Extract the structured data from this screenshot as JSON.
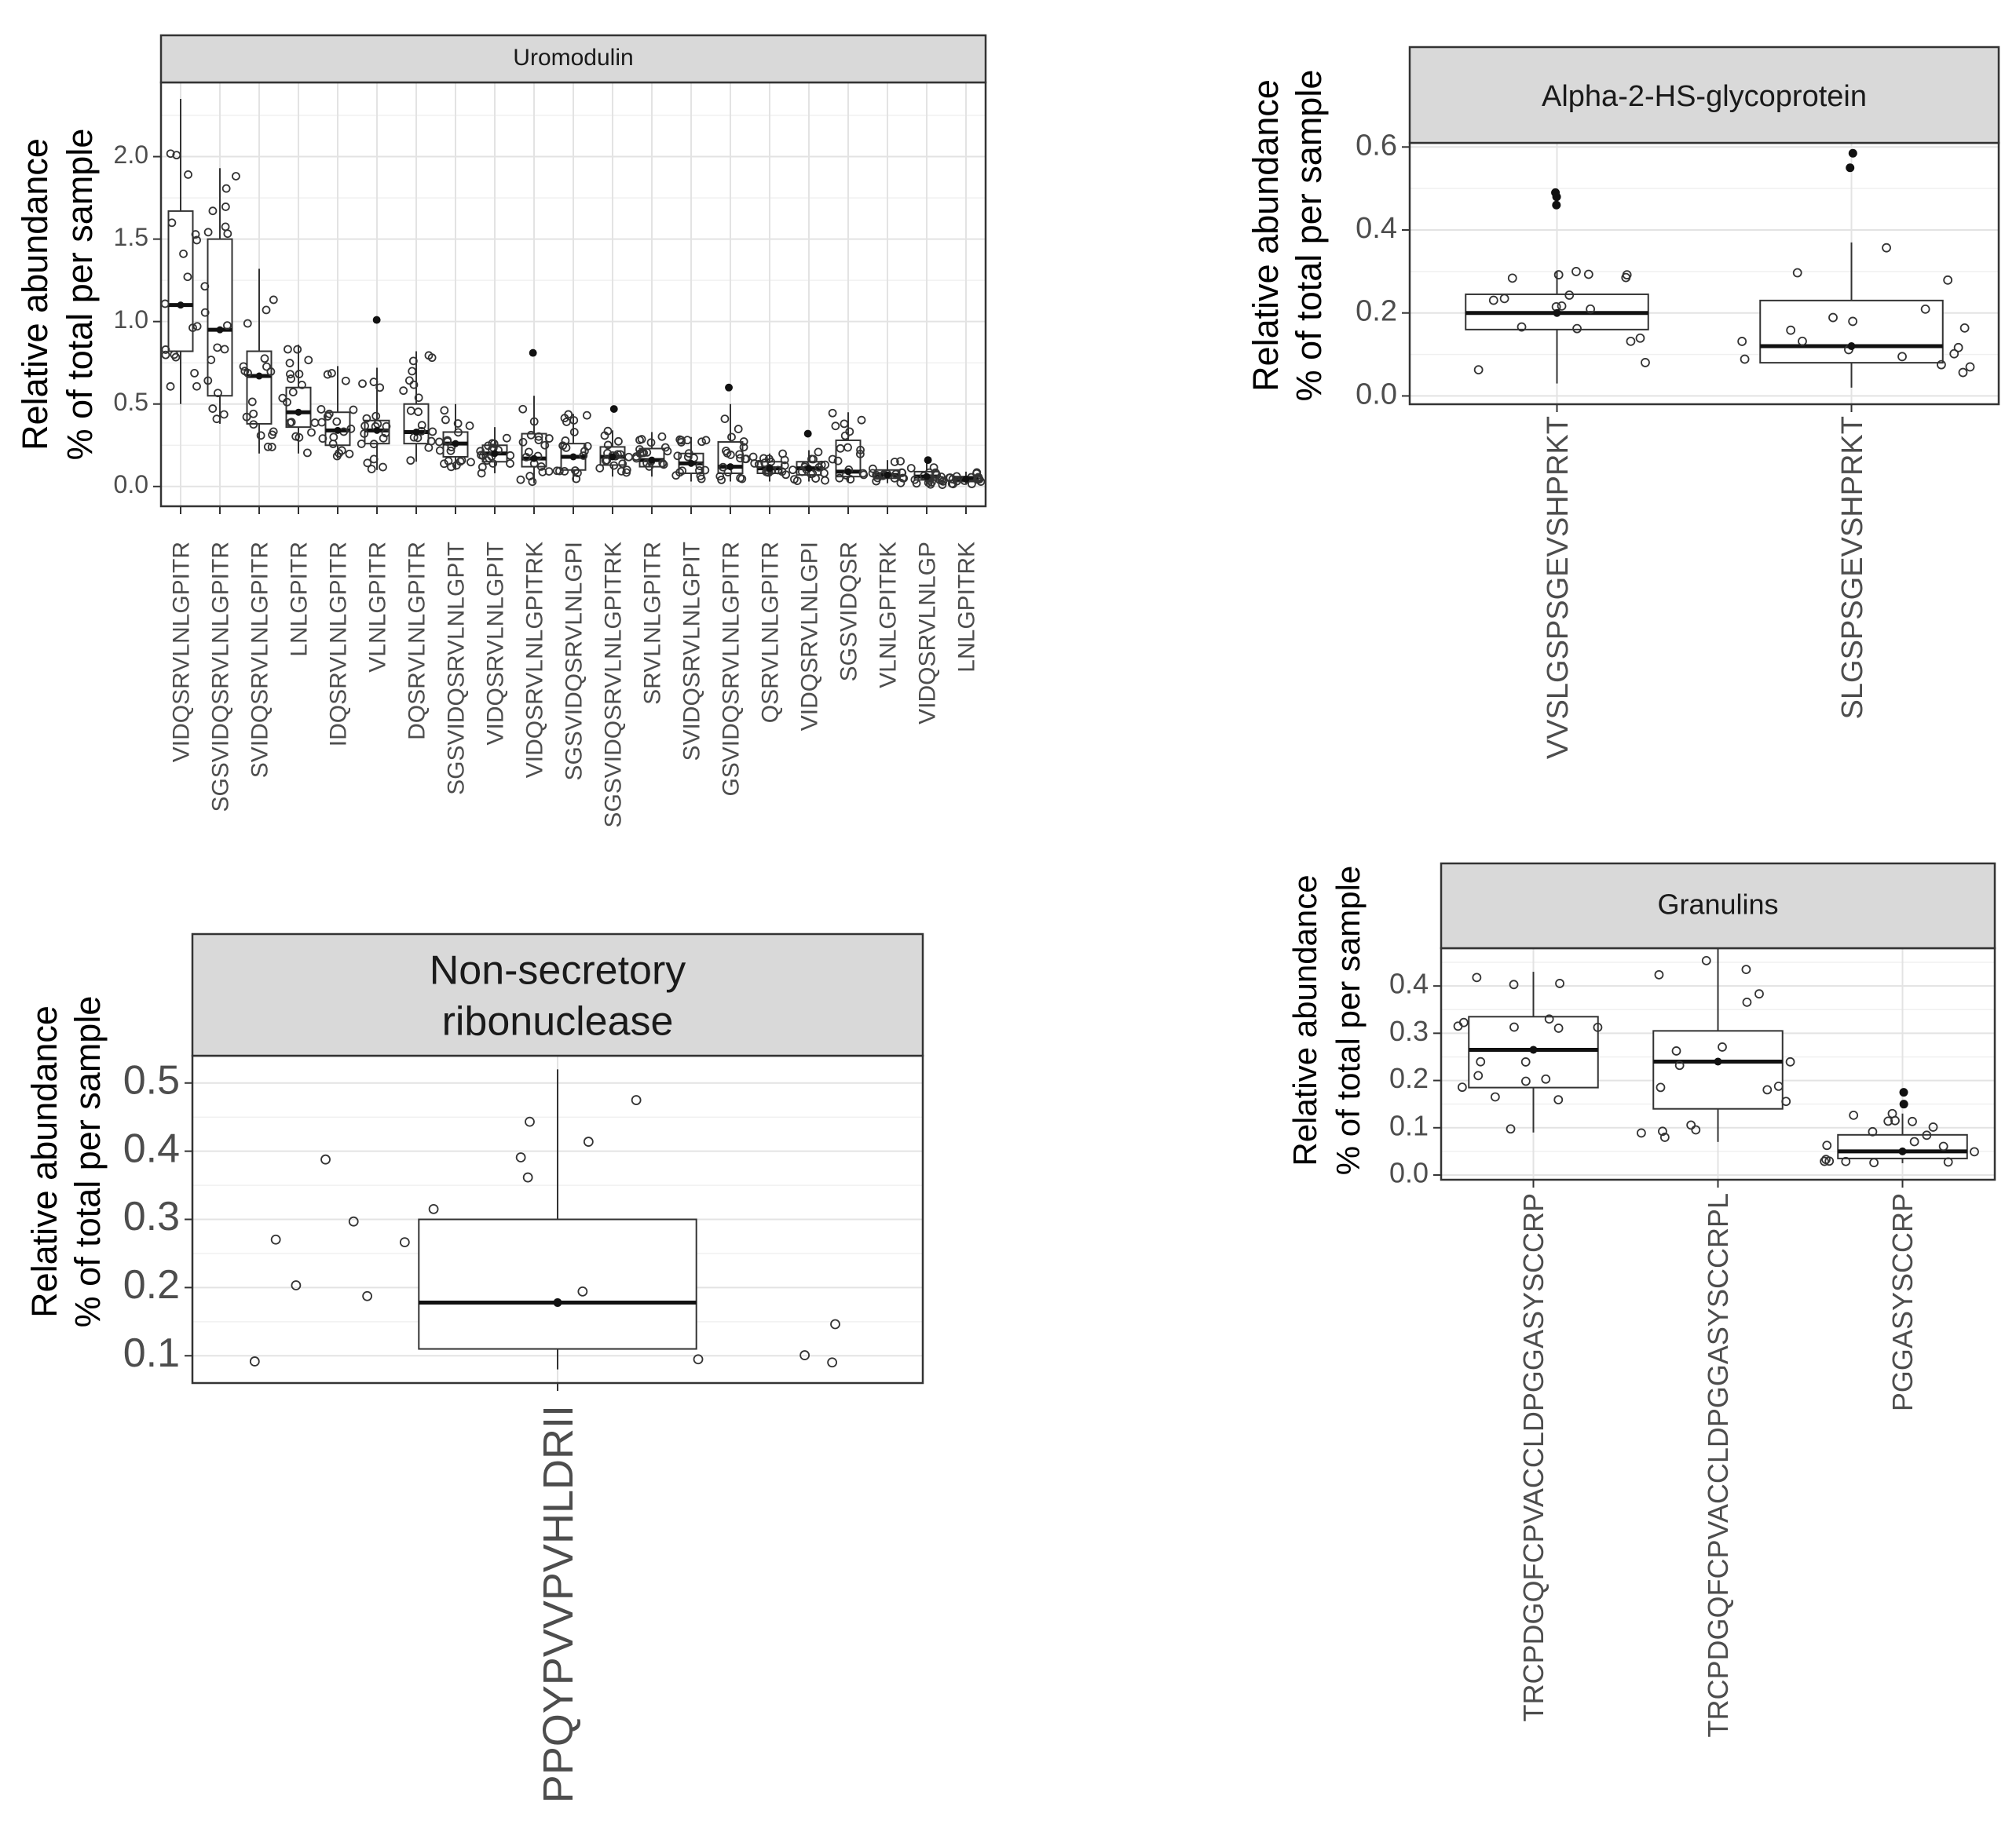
{
  "chart_data": [
    {
      "type": "boxplot",
      "id": "uromodulin",
      "title": "Uromodulin",
      "ylabel": [
        "Relative abundance",
        "% of total per sample"
      ],
      "ylim": [
        -0.12,
        2.45
      ],
      "yticks": [
        0.0,
        0.5,
        1.0,
        1.5,
        2.0
      ],
      "ytick_labels": [
        "0.0",
        "0.5",
        "1.0",
        "1.5",
        "2.0"
      ],
      "categories": [
        "VIDQSRVLNLGPITR",
        "SGSVIDQSRVLNLGPITR",
        "SVIDQSRVLNLGPITR",
        "LNLGPITR",
        "IDQSRVLNLGPITR",
        "VLNLGPITR",
        "DQSRVLNLGPITR",
        "SGSVIDQSRVLNLGPIT",
        "VIDQSRVLNLGPIT",
        "VIDQSRVLNLGPITRK",
        "SGSVIDQSRVLNLGPI",
        "SGSVIDQSRVLNLGPITRK",
        "SRVLNLGPITR",
        "SVIDQSRVLNLGPIT",
        "GSVIDQSRVLNLGPITR",
        "QSRVLNLGPITR",
        "VIDQSRVLNLGPI",
        "SGSVIDQSR",
        "VLNLGPITRK",
        "VIDQSRVLNLGP",
        "LNLGPITRK"
      ],
      "boxes": [
        {
          "q1": 0.82,
          "median": 1.1,
          "q3": 1.67,
          "lo": 0.5,
          "hi": 2.35,
          "outliers": []
        },
        {
          "q1": 0.55,
          "median": 0.95,
          "q3": 1.5,
          "lo": 0.38,
          "hi": 1.93,
          "outliers": []
        },
        {
          "q1": 0.38,
          "median": 0.67,
          "q3": 0.82,
          "lo": 0.2,
          "hi": 1.32,
          "outliers": []
        },
        {
          "q1": 0.36,
          "median": 0.45,
          "q3": 0.6,
          "lo": 0.2,
          "hi": 0.86,
          "outliers": []
        },
        {
          "q1": 0.25,
          "median": 0.34,
          "q3": 0.45,
          "lo": 0.17,
          "hi": 0.73,
          "outliers": []
        },
        {
          "q1": 0.26,
          "median": 0.34,
          "q3": 0.4,
          "lo": 0.1,
          "hi": 0.72,
          "outliers": [
            1.01
          ]
        },
        {
          "q1": 0.26,
          "median": 0.33,
          "q3": 0.5,
          "lo": 0.15,
          "hi": 0.82,
          "outliers": []
        },
        {
          "q1": 0.18,
          "median": 0.26,
          "q3": 0.33,
          "lo": 0.1,
          "hi": 0.5,
          "outliers": []
        },
        {
          "q1": 0.15,
          "median": 0.2,
          "q3": 0.25,
          "lo": 0.08,
          "hi": 0.36,
          "outliers": []
        },
        {
          "q1": 0.12,
          "median": 0.17,
          "q3": 0.32,
          "lo": 0.02,
          "hi": 0.55,
          "outliers": [
            0.81
          ]
        },
        {
          "q1": 0.1,
          "median": 0.18,
          "q3": 0.26,
          "lo": 0.03,
          "hi": 0.44,
          "outliers": []
        },
        {
          "q1": 0.13,
          "median": 0.18,
          "q3": 0.24,
          "lo": 0.06,
          "hi": 0.34,
          "outliers": [
            0.47
          ]
        },
        {
          "q1": 0.12,
          "median": 0.16,
          "q3": 0.23,
          "lo": 0.06,
          "hi": 0.33,
          "outliers": []
        },
        {
          "q1": 0.08,
          "median": 0.14,
          "q3": 0.2,
          "lo": 0.03,
          "hi": 0.3,
          "outliers": []
        },
        {
          "q1": 0.08,
          "median": 0.12,
          "q3": 0.27,
          "lo": 0.03,
          "hi": 0.5,
          "outliers": [
            0.6
          ]
        },
        {
          "q1": 0.08,
          "median": 0.11,
          "q3": 0.15,
          "lo": 0.03,
          "hi": 0.2,
          "outliers": []
        },
        {
          "q1": 0.07,
          "median": 0.11,
          "q3": 0.15,
          "lo": 0.03,
          "hi": 0.22,
          "outliers": [
            0.32
          ]
        },
        {
          "q1": 0.06,
          "median": 0.09,
          "q3": 0.28,
          "lo": 0.03,
          "hi": 0.45,
          "outliers": []
        },
        {
          "q1": 0.05,
          "median": 0.07,
          "q3": 0.1,
          "lo": 0.02,
          "hi": 0.16,
          "outliers": []
        },
        {
          "q1": 0.04,
          "median": 0.06,
          "q3": 0.09,
          "lo": 0.01,
          "hi": 0.14,
          "outliers": [
            0.16
          ]
        },
        {
          "q1": 0.03,
          "median": 0.045,
          "q3": 0.06,
          "lo": 0.01,
          "hi": 0.09,
          "outliers": []
        }
      ]
    },
    {
      "type": "boxplot",
      "id": "alpha2",
      "title": "Alpha-2-HS-glycoprotein",
      "ylabel": [
        "Relative abundance",
        "% of total per sample"
      ],
      "ylim": [
        -0.02,
        0.61
      ],
      "yticks": [
        0.0,
        0.2,
        0.4,
        0.6
      ],
      "ytick_labels": [
        "0.0",
        "0.2",
        "0.4",
        "0.6"
      ],
      "categories": [
        "VVSLGSPSGEVSHPRKT",
        "SLGSPSGEVSHPRKT"
      ],
      "boxes": [
        {
          "q1": 0.16,
          "median": 0.2,
          "q3": 0.245,
          "lo": 0.03,
          "hi": 0.3,
          "outliers": [
            0.46,
            0.48,
            0.49
          ]
        },
        {
          "q1": 0.08,
          "median": 0.12,
          "q3": 0.23,
          "lo": 0.02,
          "hi": 0.37,
          "outliers": [
            0.55,
            0.585
          ]
        }
      ]
    },
    {
      "type": "boxplot",
      "id": "nonsecretory",
      "title": [
        "Non-secretory",
        "ribonuclease"
      ],
      "ylabel": [
        "Relative abundance",
        "% of total per sample"
      ],
      "ylim": [
        0.06,
        0.54
      ],
      "yticks": [
        0.1,
        0.2,
        0.3,
        0.4,
        0.5
      ],
      "ytick_labels": [
        "0.1",
        "0.2",
        "0.3",
        "0.4",
        "0.5"
      ],
      "categories": [
        "PPQYPVVPVHLDRII"
      ],
      "boxes": [
        {
          "q1": 0.11,
          "median": 0.178,
          "q3": 0.3,
          "lo": 0.08,
          "hi": 0.52,
          "outliers": []
        }
      ]
    },
    {
      "type": "boxplot",
      "id": "granulins",
      "title": "Granulins",
      "ylabel": [
        "Relative abundance",
        "% of total per sample"
      ],
      "ylim": [
        -0.01,
        0.48
      ],
      "yticks": [
        0.0,
        0.1,
        0.2,
        0.3,
        0.4
      ],
      "ytick_labels": [
        "0.0",
        "0.1",
        "0.2",
        "0.3",
        "0.4"
      ],
      "categories": [
        "TRCPDGQFCPVACCLDPGGASYSCCRP",
        "TRCPDGQFCPVACCLDPGGASYSCCRPL",
        "PGGASYSCCRP"
      ],
      "boxes": [
        {
          "q1": 0.185,
          "median": 0.265,
          "q3": 0.335,
          "lo": 0.09,
          "hi": 0.43,
          "outliers": []
        },
        {
          "q1": 0.14,
          "median": 0.24,
          "q3": 0.305,
          "lo": 0.07,
          "hi": 0.48,
          "outliers": []
        },
        {
          "q1": 0.035,
          "median": 0.05,
          "q3": 0.085,
          "lo": 0.025,
          "hi": 0.13,
          "outliers": [
            0.15,
            0.175
          ]
        }
      ]
    }
  ]
}
